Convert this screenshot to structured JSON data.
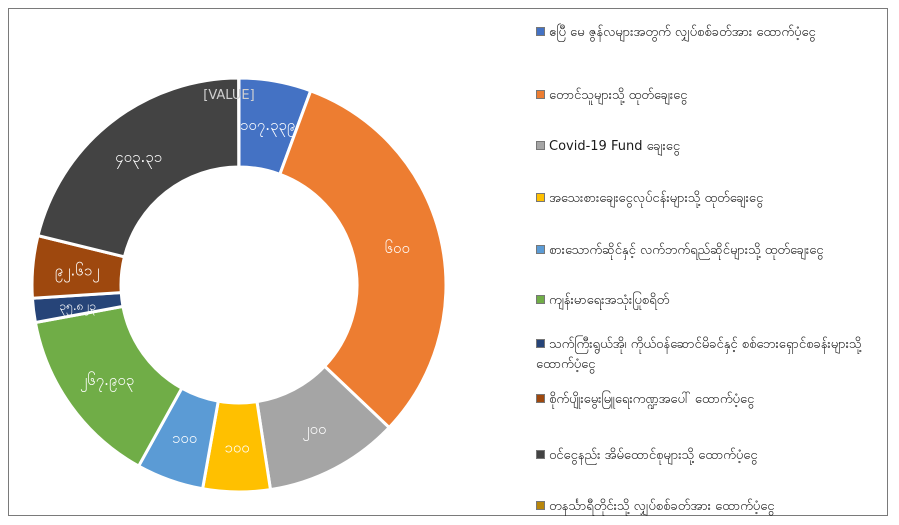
{
  "chart_data": {
    "type": "donut",
    "slices": [
      {
        "name": "ဧပြီ မေ ဇွန်လများအတွက် လျှပ်စစ်ခတ်အား ထောက်ပံ့ငွေ",
        "label": "၁၀၇.၃၃၉",
        "value": 107.339,
        "color": "#4472c4"
      },
      {
        "name": "တောင်သူများသို့ ထုတ်ချေးငွေ",
        "label": "၆၀၀",
        "value": 600,
        "color": "#ed7d31"
      },
      {
        "name": "Covid-19 Fund ချေးငွေ",
        "label": "၂၀၀",
        "value": 200,
        "color": "#a5a5a5"
      },
      {
        "name": "အသေးစားချေးငွေလုပ်ငန်းများသို့ ထုတ်ချေးငွေ",
        "label": "၁၀၀",
        "value": 100,
        "color": "#ffc000"
      },
      {
        "name": "စားသောက်ဆိုင်နှင့် လက်ဘက်ရည်ဆိုင်များသို့ ထုတ်ချေးငွေ",
        "label": "၁၀၀",
        "value": 100,
        "color": "#5b9bd5"
      },
      {
        "name": "ကျန်းမာရေးအသုံးပြုစရိတ်",
        "label": "၂၆၇.၉၀၃",
        "value": 267.903,
        "color": "#70ad47"
      },
      {
        "name": "သက်ကြီးရွယ်အို၊ ကိုယ်ဝန်ဆောင်မိခင်နှင့် စစ်ဘေးရှောင်စခန်းများသို့ ထောက်ပံ့ငွေ",
        "label": "၃၅.၈၂၃",
        "value": 35.823,
        "color": "#264478"
      },
      {
        "name": "စိုက်ပျိုးမွေးမြူရေးကဏ္ဍအပေါ် ထောက်ပံ့ငွေ",
        "label": "၉၂.၆၁၂",
        "value": 92.612,
        "color": "#9e480e"
      },
      {
        "name": "ဝင်ငွေနည်း အိမ်ထောင်စုများသို့ ထောက်ပံ့ငွေ",
        "label": "၄၀၃.၃၁",
        "value": 403.31,
        "color": "#434343"
      },
      {
        "name": "တနင်္သာရီတိုင်းသို့ လျှပ်စစ်ခတ်အား ထောက်ပံ့ငွေ",
        "label": "[VALUE]",
        "value": 0.4,
        "color": "#b8860b"
      }
    ]
  }
}
